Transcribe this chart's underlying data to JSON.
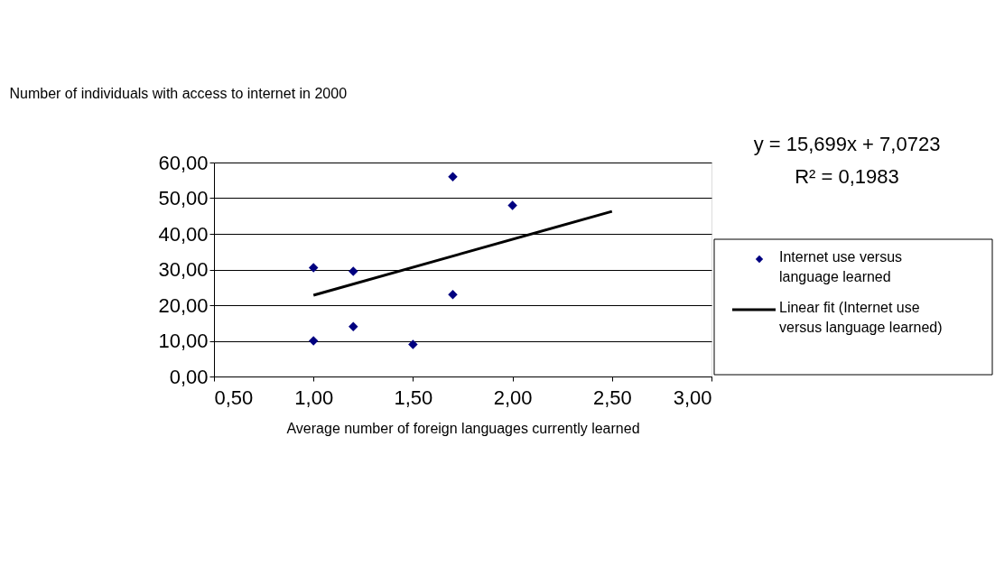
{
  "chart_data": {
    "type": "scatter",
    "ylabel": "Number of individuals with access to internet in 2000",
    "xlabel": "Average number of foreign languages currently learned",
    "xlim": [
      0.5,
      3.0
    ],
    "xticks": [
      {
        "value": 0.5,
        "label": "0,50"
      },
      {
        "value": 1.0,
        "label": "1,00"
      },
      {
        "value": 1.5,
        "label": "1,50"
      },
      {
        "value": 2.0,
        "label": "2,00"
      },
      {
        "value": 2.5,
        "label": "2,50"
      },
      {
        "value": 3.0,
        "label": "3,00"
      }
    ],
    "ylim": [
      0,
      60
    ],
    "yticks": [
      {
        "value": 0,
        "label": "0,00"
      },
      {
        "value": 10,
        "label": "10,00"
      },
      {
        "value": 20,
        "label": "20,00"
      },
      {
        "value": 30,
        "label": "30,00"
      },
      {
        "value": 40,
        "label": "40,00"
      },
      {
        "value": 50,
        "label": "50,00"
      },
      {
        "value": 60,
        "label": "60,00"
      }
    ],
    "grid": "y",
    "legend": "right",
    "annotations": [
      "y = 15,699x + 7,0723",
      "R² = 0,1983"
    ],
    "series": [
      {
        "name": "Internet use versus language learned",
        "color": "#000080",
        "marker": "diamond",
        "x": [
          1.0,
          1.0,
          1.2,
          1.2,
          1.5,
          1.7,
          1.7,
          2.0
        ],
        "values": [
          30.5,
          10,
          29.5,
          14,
          9,
          56,
          23,
          48
        ]
      },
      {
        "name": "Linear fit (Internet use versus language learned)",
        "type": "line",
        "marker": "none",
        "color": "#000000",
        "x": [
          1.0,
          2.5
        ],
        "values": [
          22.8,
          46.3
        ]
      }
    ]
  }
}
